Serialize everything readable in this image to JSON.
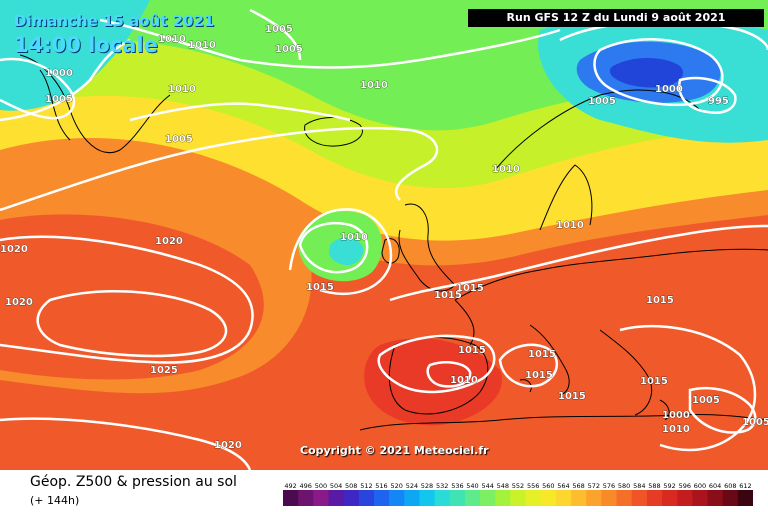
{
  "header": {
    "date": "Dimanche 15 août 2021",
    "local_time": "14:00 locale",
    "run": "Run GFS 12 Z du Lundi 9 août 2021"
  },
  "copyright": "Copyright © 2021 Meteociel.fr",
  "footer": {
    "product": "Géop. Z500 & pression au sol",
    "lead": "(+ 144h)"
  },
  "isobar_labels": [
    "1010",
    "1010",
    "1005",
    "1005",
    "1000",
    "1005",
    "1010",
    "1010",
    "1005",
    "1000",
    "995",
    "1005",
    "1010",
    "1010",
    "1010",
    "1020",
    "1020",
    "1020",
    "1015",
    "1015",
    "1015",
    "1015",
    "1015",
    "1015",
    "1025",
    "1010",
    "1015",
    "1015",
    "1020",
    "1015",
    "1005",
    "1000",
    "1010",
    "1005"
  ],
  "scale": {
    "values": [
      "492",
      "496",
      "500",
      "504",
      "508",
      "512",
      "516",
      "520",
      "524",
      "528",
      "532",
      "536",
      "540",
      "544",
      "548",
      "552",
      "556",
      "560",
      "564",
      "568",
      "572",
      "576",
      "580",
      "584",
      "588",
      "592",
      "596",
      "600",
      "604",
      "608",
      "612"
    ],
    "colors": [
      "#4b0b4e",
      "#6c1470",
      "#8a1a8a",
      "#5b1aa3",
      "#3e27c3",
      "#2a45de",
      "#1f64f0",
      "#1586f5",
      "#0ea7f4",
      "#12c6ee",
      "#2adbd8",
      "#40e4b4",
      "#5deb8c",
      "#7cf062",
      "#a4f23b",
      "#c8f22a",
      "#e6f026",
      "#f7e92a",
      "#fdd630",
      "#fdbd2e",
      "#fba32c",
      "#f88a2a",
      "#f46f28",
      "#ef5526",
      "#e53c24",
      "#d92a22",
      "#c41d20",
      "#a9141d",
      "#8c0d1a",
      "#6b0816",
      "#3a0410"
    ]
  },
  "map_colors": {
    "deep_red": "#e83a26",
    "red": "#f05a2a",
    "orange": "#f88b2c",
    "yellow": "#fde030",
    "yellowgreen": "#c6f02a",
    "green": "#74ee55",
    "cyan": "#39dfd4",
    "blue": "#2d7af0",
    "deepblue": "#2145d8",
    "isobar": "#ffffff",
    "coast": "#000000"
  }
}
